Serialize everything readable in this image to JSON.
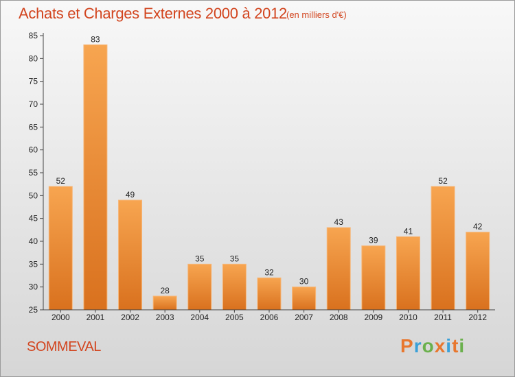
{
  "title": "Achats et Charges Externes 2000 à 2012",
  "subtitle": "(en milliers d'€)",
  "commune": "SOMMEVAL",
  "logo": "Proxiti",
  "colors": {
    "title": "#d2451f",
    "bar_light": "#f7a550",
    "bar_dark": "#d9711e",
    "logo_letters": [
      "#e8772e",
      "#3aa0d8",
      "#6ab04c",
      "#e8772e",
      "#3aa0d8",
      "#e8772e",
      "#6ab04c"
    ]
  },
  "chart_data": {
    "type": "bar",
    "categories": [
      "2000",
      "2001",
      "2002",
      "2003",
      "2004",
      "2005",
      "2006",
      "2007",
      "2008",
      "2009",
      "2010",
      "2011",
      "2012"
    ],
    "values": [
      52,
      83,
      49,
      28,
      35,
      35,
      32,
      30,
      43,
      39,
      41,
      52,
      42
    ],
    "ylim": [
      25,
      85
    ],
    "yticks": [
      25,
      30,
      35,
      40,
      45,
      50,
      55,
      60,
      65,
      70,
      75,
      80,
      85
    ],
    "grid": false
  }
}
